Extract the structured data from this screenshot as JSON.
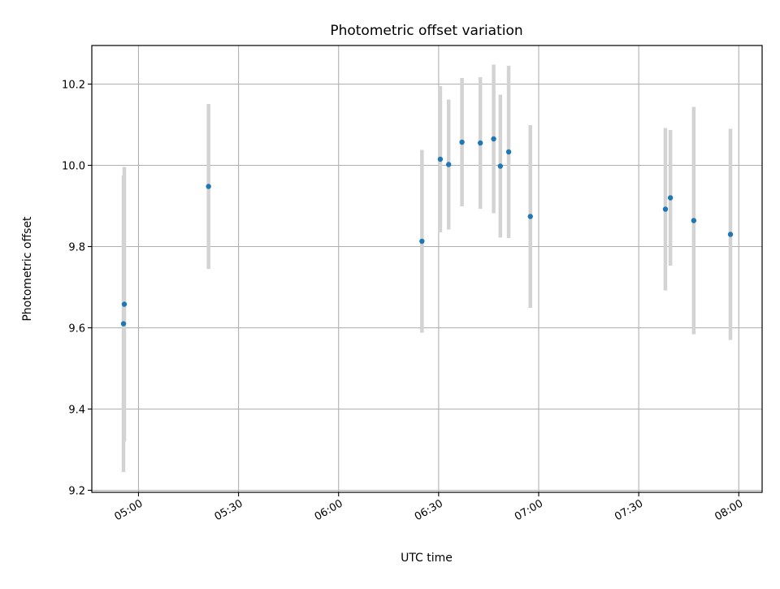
{
  "chart_data": {
    "type": "scatter",
    "title": "Photometric offset variation",
    "xlabel": "UTC time",
    "ylabel": "Photometric offset",
    "xlim": [
      "04:46",
      "08:07"
    ],
    "ylim": [
      9.195,
      10.295
    ],
    "x_ticks": [
      "05:00",
      "05:30",
      "06:00",
      "06:30",
      "07:00",
      "07:30",
      "08:00"
    ],
    "y_ticks": [
      "9.2",
      "9.4",
      "9.6",
      "9.8",
      "10.0",
      "10.2"
    ],
    "grid": true,
    "colors": {
      "point": "#1f77b4",
      "errorbar": "#d3d3d3",
      "grid": "#b0b0b0"
    },
    "points": [
      {
        "time": "04:55:30",
        "y": 9.61,
        "yerr": 0.365
      },
      {
        "time": "04:55:45",
        "y": 9.658,
        "yerr": 0.338
      },
      {
        "time": "05:21:00",
        "y": 9.948,
        "yerr": 0.203
      },
      {
        "time": "06:25:00",
        "y": 9.813,
        "yerr": 0.225
      },
      {
        "time": "06:30:30",
        "y": 10.015,
        "yerr": 0.18
      },
      {
        "time": "06:33:00",
        "y": 10.002,
        "yerr": 0.16
      },
      {
        "time": "06:37:00",
        "y": 10.057,
        "yerr": 0.158
      },
      {
        "time": "06:42:30",
        "y": 10.055,
        "yerr": 0.162
      },
      {
        "time": "06:46:30",
        "y": 10.065,
        "yerr": 0.183
      },
      {
        "time": "06:48:30",
        "y": 9.998,
        "yerr": 0.176
      },
      {
        "time": "06:51:00",
        "y": 10.033,
        "yerr": 0.212
      },
      {
        "time": "06:57:30",
        "y": 9.874,
        "yerr": 0.225
      },
      {
        "time": "07:38:00",
        "y": 9.892,
        "yerr": 0.2
      },
      {
        "time": "07:39:30",
        "y": 9.92,
        "yerr": 0.167
      },
      {
        "time": "07:46:30",
        "y": 9.864,
        "yerr": 0.28
      },
      {
        "time": "07:57:30",
        "y": 9.83,
        "yerr": 0.26
      }
    ]
  }
}
